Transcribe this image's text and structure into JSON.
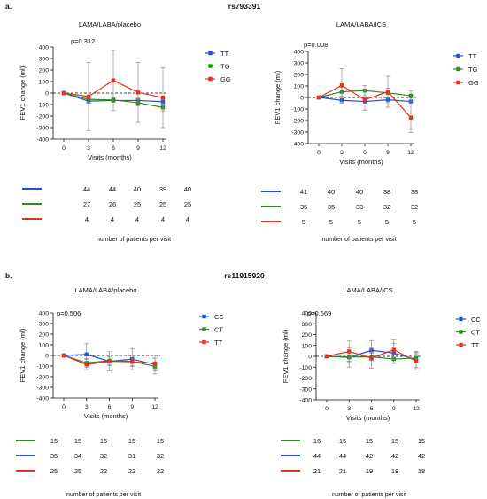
{
  "panels": [
    {
      "label": "a.",
      "snp": "rs793391"
    },
    {
      "label": "b.",
      "snp": "rs11915920"
    }
  ],
  "colors": {
    "blue": "#1f4fd8",
    "green": "#2c8a1e",
    "red": "#e8301e",
    "axis": "#111111"
  },
  "chart_data": [
    {
      "type": "line",
      "title": "LAMA/LABA/placebo",
      "annotation": "p=0.312",
      "xlabel": "Visits (months)",
      "ylabel": "FEV1 change (ml)",
      "x": [
        0,
        3,
        6,
        9,
        12
      ],
      "ylim": [
        -400,
        400
      ],
      "yticks": [
        -400,
        -300,
        -200,
        -100,
        0,
        100,
        200,
        300,
        400
      ],
      "reference_line": 0,
      "legend_position": "right",
      "series": [
        {
          "name": "TT",
          "color": "#1f4fd8",
          "marker": "square",
          "values": [
            0,
            -70,
            -65,
            -65,
            -75
          ],
          "err": [
            0,
            20,
            15,
            20,
            25
          ]
        },
        {
          "name": "TG",
          "color": "#2c8a1e",
          "marker": "square",
          "values": [
            0,
            -55,
            -60,
            -85,
            -125
          ],
          "err": [
            0,
            25,
            20,
            25,
            30
          ]
        },
        {
          "name": "GG",
          "color": "#e8301e",
          "marker": "square",
          "values": [
            0,
            -30,
            110,
            5,
            -40
          ],
          "err": [
            0,
            295,
            260,
            260,
            260
          ]
        }
      ],
      "patients_table": {
        "rows": [
          {
            "color": "#1f4fd8",
            "counts": [
              "44",
              "44",
              "40",
              "39",
              "40"
            ]
          },
          {
            "color": "#2c8a1e",
            "counts": [
              "27",
              "26",
              "25",
              "25",
              "25"
            ]
          },
          {
            "color": "#e8301e",
            "counts": [
              "4",
              "4",
              "4",
              "4",
              "4"
            ]
          }
        ],
        "caption": "number of patients per visit"
      }
    },
    {
      "type": "line",
      "title": "LAMA/LABA/ICS",
      "annotation": "p=0.008",
      "xlabel": "Visits (months)",
      "ylabel": "FEV1 change (ml)",
      "x": [
        0,
        3,
        6,
        9,
        12
      ],
      "ylim": [
        -400,
        400
      ],
      "yticks": [
        -400,
        -300,
        -200,
        -100,
        0,
        100,
        200,
        300,
        400
      ],
      "reference_line": 0,
      "legend_position": "right",
      "series": [
        {
          "name": "TT",
          "color": "#1f4fd8",
          "marker": "square",
          "values": [
            0,
            -25,
            -35,
            -20,
            -35
          ],
          "err": [
            0,
            25,
            30,
            25,
            30
          ]
        },
        {
          "name": "TG",
          "color": "#2c8a1e",
          "marker": "square",
          "values": [
            0,
            50,
            60,
            40,
            15
          ],
          "err": [
            0,
            40,
            45,
            40,
            45
          ]
        },
        {
          "name": "GG",
          "color": "#e8301e",
          "marker": "square",
          "values": [
            0,
            105,
            -20,
            50,
            -175
          ],
          "err": [
            0,
            145,
            90,
            135,
            130
          ]
        }
      ],
      "patients_table": {
        "rows": [
          {
            "color": "#1f4fd8",
            "counts": [
              "41",
              "40",
              "40",
              "38",
              "38"
            ]
          },
          {
            "color": "#2c8a1e",
            "counts": [
              "35",
              "35",
              "33",
              "32",
              "32"
            ]
          },
          {
            "color": "#e8301e",
            "counts": [
              "5",
              "5",
              "5",
              "5",
              "5"
            ]
          }
        ],
        "caption": "number of patients per visit"
      }
    },
    {
      "type": "line",
      "title": "LAMA/LABA/placebo",
      "annotation": "p=0.506",
      "xlabel": "Visits (months)",
      "ylabel": "FEV1 change (ml)",
      "x": [
        0,
        3,
        6,
        9,
        12
      ],
      "ylim": [
        -400,
        400
      ],
      "yticks": [
        -400,
        -300,
        -200,
        -100,
        0,
        100,
        200,
        300,
        400
      ],
      "reference_line": 0,
      "legend_position": "right",
      "series": [
        {
          "name": "CC",
          "color": "#1f4fd8",
          "marker": "square",
          "values": [
            0,
            10,
            -55,
            -35,
            -85
          ],
          "err": [
            0,
            100,
            90,
            100,
            90
          ]
        },
        {
          "name": "CT",
          "color": "#2c8a1e",
          "marker": "square",
          "values": [
            0,
            -70,
            -50,
            -55,
            -105
          ],
          "err": [
            0,
            40,
            35,
            40,
            40
          ]
        },
        {
          "name": "TT",
          "color": "#e8301e",
          "marker": "square",
          "values": [
            0,
            -85,
            -55,
            -60,
            -75
          ],
          "err": [
            0,
            50,
            40,
            45,
            50
          ]
        }
      ],
      "patients_table": {
        "rows": [
          {
            "color": "#2c8a1e",
            "counts": [
              "15",
              "15",
              "15",
              "15",
              "15"
            ]
          },
          {
            "color": "#1f4fd8",
            "counts": [
              "35",
              "34",
              "32",
              "31",
              "32"
            ]
          },
          {
            "color": "#e8301e",
            "counts": [
              "25",
              "25",
              "22",
              "22",
              "22"
            ]
          }
        ],
        "caption": "number of patients per visit"
      }
    },
    {
      "type": "line",
      "title": "LAMA/LABA/ICS",
      "annotation": "p=0.569",
      "xlabel": "Visits (months)",
      "ylabel": "FEV1 change (ml)",
      "x": [
        0,
        3,
        6,
        9,
        12
      ],
      "ylim": [
        -400,
        400
      ],
      "yticks": [
        -400,
        -300,
        -200,
        -100,
        0,
        100,
        200,
        300,
        400
      ],
      "reference_line": 0,
      "legend_position": "right",
      "series": [
        {
          "name": "CC",
          "color": "#1f4fd8",
          "marker": "square",
          "values": [
            0,
            -10,
            55,
            30,
            -30
          ],
          "err": [
            0,
            90,
            90,
            90,
            75
          ]
        },
        {
          "name": "CT",
          "color": "#2c8a1e",
          "marker": "square",
          "values": [
            0,
            -5,
            -5,
            -25,
            -15
          ],
          "err": [
            0,
            40,
            35,
            40,
            40
          ]
        },
        {
          "name": "TT",
          "color": "#e8301e",
          "marker": "square",
          "values": [
            0,
            45,
            -15,
            60,
            -45
          ],
          "err": [
            0,
            95,
            95,
            90,
            80
          ]
        }
      ],
      "patients_table": {
        "rows": [
          {
            "color": "#2c8a1e",
            "counts": [
              "16",
              "15",
              "15",
              "15",
              "15"
            ]
          },
          {
            "color": "#1f4fd8",
            "counts": [
              "44",
              "44",
              "42",
              "42",
              "42"
            ]
          },
          {
            "color": "#e8301e",
            "counts": [
              "21",
              "21",
              "19",
              "18",
              "18"
            ]
          }
        ],
        "caption": "number of patients per visit"
      }
    }
  ]
}
